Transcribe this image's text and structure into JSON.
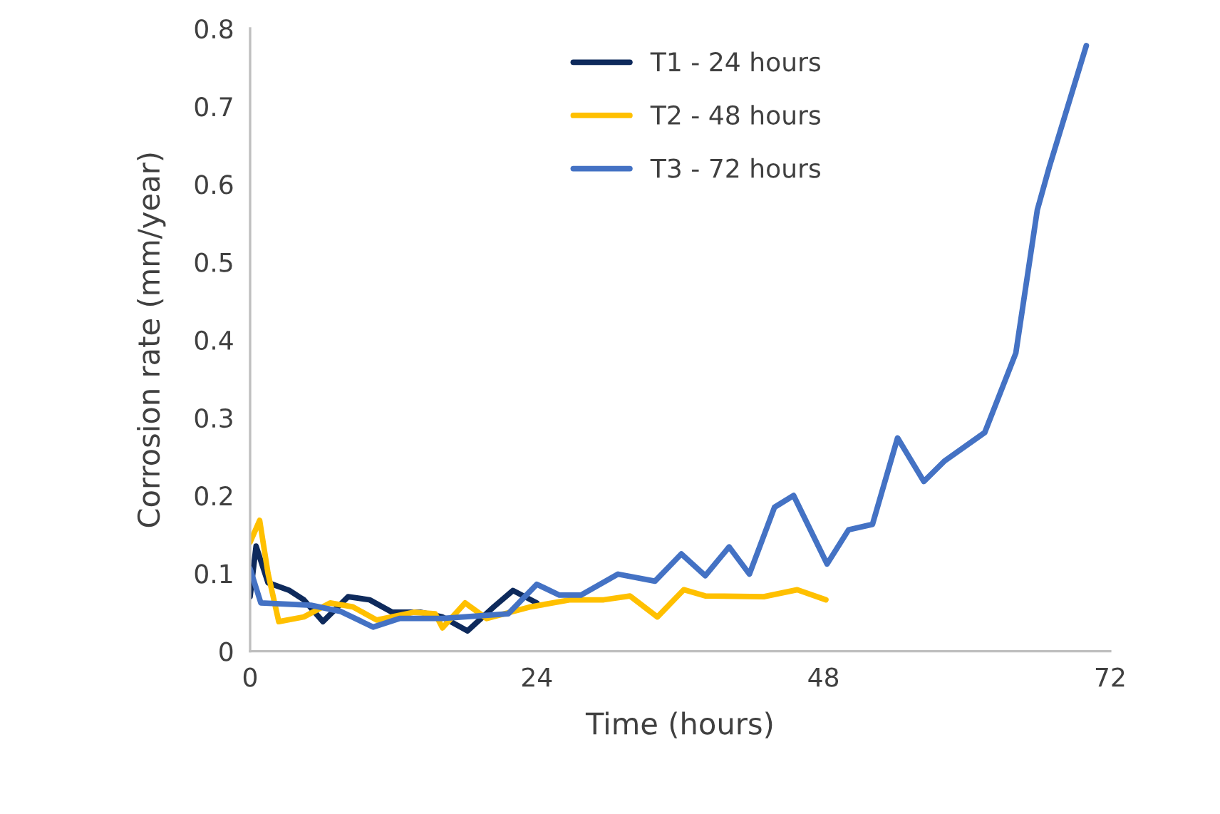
{
  "chart_data": {
    "type": "line",
    "xlabel": "Time (hours)",
    "ylabel": "Corrosion rate (mm/year)",
    "xlim": [
      0,
      72
    ],
    "xticks": [
      0,
      24,
      48,
      72
    ],
    "ylim": [
      0,
      0.8
    ],
    "yticks": [
      0,
      0.1,
      0.2,
      0.3,
      0.4,
      0.5,
      0.6,
      0.7,
      0.8
    ],
    "grid": false,
    "legend": "top",
    "line_style": "solid",
    "marker": "none",
    "series": [
      {
        "name": "T1 - 24 hours",
        "color": "#0e2a5c",
        "x": [
          0,
          0.5,
          1.5,
          3.3,
          4.5,
          6.1,
          8.2,
          10,
          11.9,
          14.3,
          16.1,
          18.2,
          20.4,
          22,
          24
        ],
        "values": [
          0.07,
          0.135,
          0.088,
          0.078,
          0.066,
          0.038,
          0.07,
          0.066,
          0.05,
          0.05,
          0.044,
          0.026,
          0.057,
          0.078,
          0.062
        ]
      },
      {
        "name": "T2 - 48 hours",
        "color": "#ffc000",
        "x": [
          0,
          0.8,
          1.5,
          2.4,
          4.5,
          6.7,
          8.6,
          10.6,
          13.7,
          15.5,
          16.1,
          18,
          19.8,
          23.5,
          26.8,
          29.6,
          31.8,
          34.1,
          36.3,
          38.1,
          43,
          45.8,
          48.2
        ],
        "values": [
          0.14,
          0.168,
          0.1,
          0.038,
          0.044,
          0.062,
          0.057,
          0.04,
          0.05,
          0.048,
          0.03,
          0.062,
          0.042,
          0.057,
          0.066,
          0.066,
          0.071,
          0.044,
          0.079,
          0.071,
          0.07,
          0.079,
          0.066
        ]
      },
      {
        "name": "T3 - 72 hours",
        "color": "#4472c4",
        "x": [
          0,
          0.9,
          5.1,
          7.6,
          10.3,
          12.5,
          16.1,
          21.6,
          24,
          25.9,
          27.7,
          30.8,
          33.9,
          36.1,
          38.1,
          40.1,
          41.8,
          43.9,
          45.5,
          48.3,
          50.1,
          52.1,
          54.2,
          56.4,
          58.1,
          61.5,
          64.1,
          65.9,
          66.9,
          70.0
        ],
        "values": [
          0.106,
          0.062,
          0.059,
          0.051,
          0.031,
          0.042,
          0.042,
          0.048,
          0.086,
          0.072,
          0.072,
          0.099,
          0.09,
          0.125,
          0.097,
          0.134,
          0.099,
          0.185,
          0.2,
          0.112,
          0.156,
          0.163,
          0.274,
          0.218,
          0.244,
          0.281,
          0.383,
          0.567,
          0.622,
          0.778
        ]
      }
    ]
  }
}
